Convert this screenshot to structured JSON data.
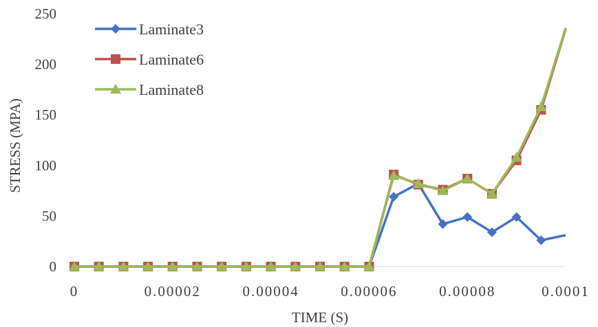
{
  "chart_data": {
    "type": "line",
    "xlabel": "TIME (S)",
    "ylabel": "STRESS (MPA)",
    "xlim": [
      0,
      0.0001
    ],
    "ylim": [
      0,
      250
    ],
    "x_ticks": [
      0,
      2e-05,
      4e-05,
      6e-05,
      8e-05,
      0.0001
    ],
    "x_tick_labels": [
      "0",
      "0.00002",
      "0.00004",
      "0.00006",
      "0.00008",
      "0.0001"
    ],
    "y_ticks": [
      0,
      50,
      100,
      150,
      200,
      250
    ],
    "y_tick_labels": [
      "0",
      "50",
      "100",
      "150",
      "200",
      "250"
    ],
    "grid": false,
    "legend_position": "top-left",
    "x": [
      0,
      5e-06,
      1e-05,
      1.5e-05,
      2e-05,
      2.5e-05,
      3e-05,
      3.5e-05,
      4e-05,
      4.5e-05,
      5e-05,
      5.5e-05,
      6e-05,
      6.5e-05,
      7e-05,
      7.5e-05,
      8e-05,
      8.5e-05,
      9e-05,
      9.5e-05,
      0.0001
    ],
    "series": [
      {
        "name": "Laminate3",
        "color": "#4472c4",
        "marker": "diamond",
        "values": [
          0,
          0,
          0,
          0,
          0,
          0,
          0,
          0,
          0,
          0,
          0,
          0,
          0,
          69,
          82,
          42,
          49,
          34,
          49,
          26,
          31
        ]
      },
      {
        "name": "Laminate6",
        "color": "#c0504d",
        "marker": "square",
        "values": [
          0,
          0,
          0,
          0,
          0,
          0,
          0,
          0,
          0,
          0,
          0,
          0,
          0,
          91,
          81,
          76,
          87,
          72,
          105,
          155,
          235
        ]
      },
      {
        "name": "Laminate8",
        "color": "#9bbb59",
        "marker": "triangle",
        "values": [
          0,
          0,
          0,
          0,
          0,
          0,
          0,
          0,
          0,
          0,
          0,
          0,
          0,
          90,
          82,
          75,
          87,
          72,
          108,
          158,
          236
        ]
      }
    ]
  }
}
